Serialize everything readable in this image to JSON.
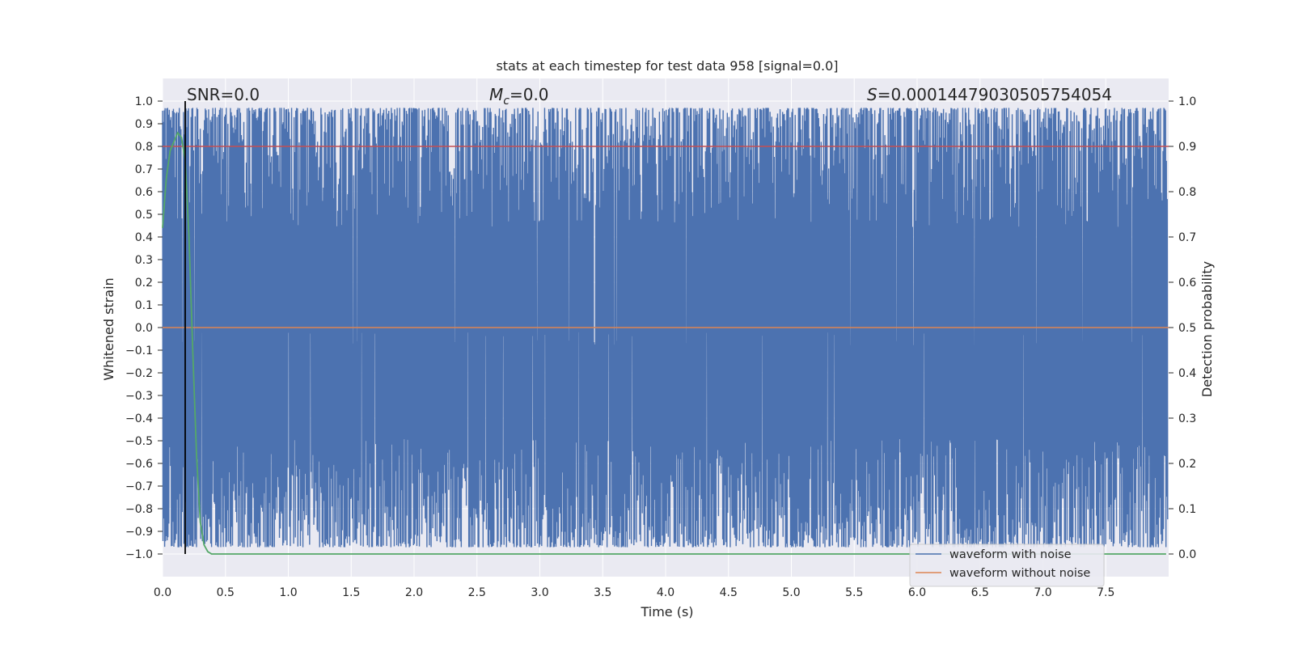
{
  "chart_data": {
    "type": "line",
    "title": "stats at each timestep for test data 958 [signal=0.0]",
    "xlabel": "Time (s)",
    "ylabel": "Whitened strain",
    "ylabel_right": "Detection probability",
    "xlim": [
      0,
      8
    ],
    "ylim": [
      -1.1,
      1.1
    ],
    "ylim_right": [
      -0.05,
      1.05
    ],
    "x_ticks": [
      "0.0",
      "0.5",
      "1.0",
      "1.5",
      "2.0",
      "2.5",
      "3.0",
      "3.5",
      "4.0",
      "4.5",
      "5.0",
      "5.5",
      "6.0",
      "6.5",
      "7.0",
      "7.5"
    ],
    "y_ticks": [
      "1.0",
      "0.9",
      "0.8",
      "0.7",
      "0.6",
      "0.5",
      "0.4",
      "0.3",
      "0.2",
      "0.1",
      "0.0",
      "−0.1",
      "−0.2",
      "−0.3",
      "−0.4",
      "−0.5",
      "−0.6",
      "−0.7",
      "−0.8",
      "−0.9",
      "−1.0"
    ],
    "y_ticks_right": [
      "1.0",
      "0.9",
      "0.8",
      "0.7",
      "0.6",
      "0.5",
      "0.4",
      "0.3",
      "0.2",
      "0.1",
      "0.0"
    ],
    "grid": true,
    "legend": {
      "placement": "lower-right"
    },
    "annotations": {
      "snr": "SNR=0.0",
      "mc_symbol": "M",
      "mc_subscript": "c",
      "mc_value": "=0.0",
      "s_symbol": "S",
      "s_value": "=0.0001447903050575405​4"
    },
    "vertical_marker_x": 0.18,
    "threshold_right": 0.9,
    "series": [
      {
        "name": "waveform with noise",
        "color": "#4c72b0",
        "axis": "left",
        "description_hidden": true,
        "envelope_top": 0.97,
        "envelope_bottom": -0.97
      },
      {
        "name": "waveform without noise",
        "color": "#dd8452",
        "axis": "left",
        "x": [
          0,
          8
        ],
        "y": [
          0,
          0
        ]
      },
      {
        "name": "detection probability",
        "color": "#55a868",
        "axis": "right",
        "legend": false,
        "x": [
          0.0,
          0.03,
          0.06,
          0.09,
          0.12,
          0.15,
          0.18,
          0.21,
          0.24,
          0.27,
          0.3,
          0.33,
          0.36,
          0.39,
          0.45,
          1.0,
          2.0,
          3.0,
          4.0,
          5.0,
          6.0,
          7.0,
          7.98
        ],
        "y": [
          0.72,
          0.83,
          0.89,
          0.91,
          0.93,
          0.92,
          0.87,
          0.7,
          0.45,
          0.22,
          0.07,
          0.02,
          0.005,
          0.0,
          0.0,
          0.0,
          0.0,
          0.0,
          0.0,
          0.0,
          0.0,
          0.0,
          0.0
        ]
      }
    ]
  }
}
